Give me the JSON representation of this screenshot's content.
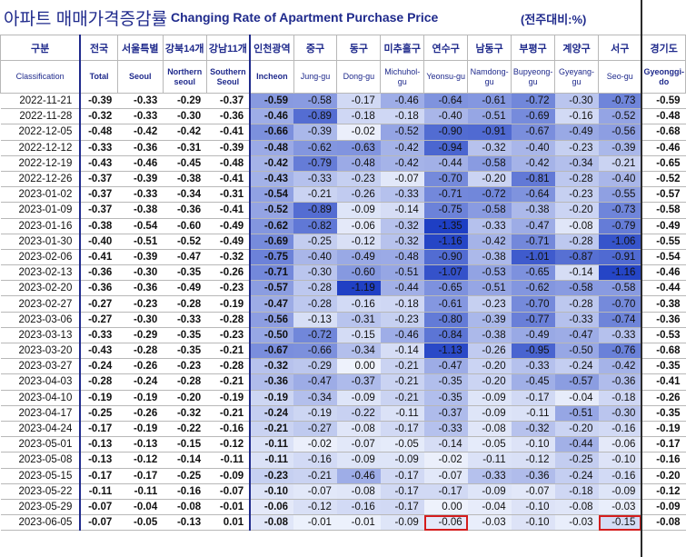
{
  "title": {
    "korean": "아파트 매매가격증감률",
    "english": "Changing Rate of Apartment Purchase Price",
    "unit": "(전주대비:%)"
  },
  "colors": {
    "header_text": "#1f2a8c",
    "highlight_border": "#d41d1d",
    "heat_light": "#eef2fc",
    "heat_dark": "#1e3fc4"
  },
  "columns": [
    {
      "ko": "구분",
      "en": "Classification"
    },
    {
      "ko": "전국",
      "en": "Total"
    },
    {
      "ko": "서울특별",
      "en": "Seoul"
    },
    {
      "ko": "강북14개",
      "en": "Northern seoul"
    },
    {
      "ko": "강남11개",
      "en": "Southern Seoul"
    },
    {
      "ko": "인천광역",
      "en": "Incheon"
    },
    {
      "ko": "중구",
      "en": "Jung-gu"
    },
    {
      "ko": "동구",
      "en": "Dong-gu"
    },
    {
      "ko": "미추홀구",
      "en": "Michuhol-gu"
    },
    {
      "ko": "연수구",
      "en": "Yeonsu-gu"
    },
    {
      "ko": "남동구",
      "en": "Namdong-gu"
    },
    {
      "ko": "부평구",
      "en": "Bupyeong-gu"
    },
    {
      "ko": "계양구",
      "en": "Gyeyang-gu"
    },
    {
      "ko": "서구",
      "en": "Seo-gu"
    },
    {
      "ko": "경기도",
      "en": "Gyeonggi-do"
    }
  ],
  "rows": [
    {
      "date": "2022-11-21",
      "values": [
        "-0.39",
        "-0.33",
        "-0.29",
        "-0.37",
        "-0.59",
        "-0.58",
        "-0.17",
        "-0.46",
        "-0.64",
        "-0.61",
        "-0.72",
        "-0.30",
        "-0.73",
        "-0.59"
      ]
    },
    {
      "date": "2022-11-28",
      "values": [
        "-0.32",
        "-0.33",
        "-0.30",
        "-0.36",
        "-0.46",
        "-0.89",
        "-0.18",
        "-0.18",
        "-0.40",
        "-0.51",
        "-0.69",
        "-0.16",
        "-0.52",
        "-0.48"
      ]
    },
    {
      "date": "2022-12-05",
      "values": [
        "-0.48",
        "-0.42",
        "-0.42",
        "-0.41",
        "-0.66",
        "-0.39",
        "-0.02",
        "-0.52",
        "-0.90",
        "-0.91",
        "-0.67",
        "-0.49",
        "-0.56",
        "-0.68"
      ]
    },
    {
      "date": "2022-12-12",
      "values": [
        "-0.33",
        "-0.36",
        "-0.31",
        "-0.39",
        "-0.48",
        "-0.62",
        "-0.63",
        "-0.42",
        "-0.94",
        "-0.32",
        "-0.40",
        "-0.23",
        "-0.39",
        "-0.46"
      ]
    },
    {
      "date": "2022-12-19",
      "values": [
        "-0.43",
        "-0.46",
        "-0.45",
        "-0.48",
        "-0.42",
        "-0.79",
        "-0.48",
        "-0.42",
        "-0.44",
        "-0.58",
        "-0.42",
        "-0.34",
        "-0.21",
        "-0.65"
      ]
    },
    {
      "date": "2022-12-26",
      "values": [
        "-0.37",
        "-0.39",
        "-0.38",
        "-0.41",
        "-0.43",
        "-0.33",
        "-0.23",
        "-0.07",
        "-0.70",
        "-0.20",
        "-0.81",
        "-0.28",
        "-0.40",
        "-0.52"
      ]
    },
    {
      "date": "2023-01-02",
      "values": [
        "-0.37",
        "-0.33",
        "-0.34",
        "-0.31",
        "-0.54",
        "-0.21",
        "-0.26",
        "-0.33",
        "-0.71",
        "-0.72",
        "-0.64",
        "-0.23",
        "-0.55",
        "-0.57"
      ]
    },
    {
      "date": "2023-01-09",
      "values": [
        "-0.37",
        "-0.38",
        "-0.36",
        "-0.41",
        "-0.52",
        "-0.89",
        "-0.09",
        "-0.14",
        "-0.75",
        "-0.58",
        "-0.38",
        "-0.20",
        "-0.73",
        "-0.58"
      ]
    },
    {
      "date": "2023-01-16",
      "values": [
        "-0.38",
        "-0.54",
        "-0.60",
        "-0.49",
        "-0.62",
        "-0.82",
        "-0.06",
        "-0.32",
        "-1.35",
        "-0.33",
        "-0.47",
        "-0.08",
        "-0.79",
        "-0.49"
      ]
    },
    {
      "date": "2023-01-30",
      "values": [
        "-0.40",
        "-0.51",
        "-0.52",
        "-0.49",
        "-0.69",
        "-0.25",
        "-0.12",
        "-0.32",
        "-1.16",
        "-0.42",
        "-0.71",
        "-0.28",
        "-1.06",
        "-0.55"
      ]
    },
    {
      "date": "2023-02-06",
      "values": [
        "-0.41",
        "-0.39",
        "-0.47",
        "-0.32",
        "-0.75",
        "-0.40",
        "-0.49",
        "-0.48",
        "-0.90",
        "-0.38",
        "-1.01",
        "-0.87",
        "-0.91",
        "-0.54"
      ]
    },
    {
      "date": "2023-02-13",
      "values": [
        "-0.36",
        "-0.30",
        "-0.35",
        "-0.26",
        "-0.71",
        "-0.30",
        "-0.60",
        "-0.51",
        "-1.07",
        "-0.53",
        "-0.65",
        "-0.14",
        "-1.16",
        "-0.46"
      ]
    },
    {
      "date": "2023-02-20",
      "values": [
        "-0.36",
        "-0.36",
        "-0.49",
        "-0.23",
        "-0.57",
        "-0.28",
        "-1.19",
        "-0.44",
        "-0.65",
        "-0.51",
        "-0.62",
        "-0.58",
        "-0.58",
        "-0.44"
      ]
    },
    {
      "date": "2023-02-27",
      "values": [
        "-0.27",
        "-0.23",
        "-0.28",
        "-0.19",
        "-0.47",
        "-0.28",
        "-0.16",
        "-0.18",
        "-0.61",
        "-0.23",
        "-0.70",
        "-0.28",
        "-0.70",
        "-0.38"
      ]
    },
    {
      "date": "2023-03-06",
      "values": [
        "-0.27",
        "-0.30",
        "-0.33",
        "-0.28",
        "-0.56",
        "-0.13",
        "-0.31",
        "-0.23",
        "-0.80",
        "-0.39",
        "-0.77",
        "-0.33",
        "-0.74",
        "-0.36"
      ]
    },
    {
      "date": "2023-03-13",
      "values": [
        "-0.33",
        "-0.29",
        "-0.35",
        "-0.23",
        "-0.50",
        "-0.72",
        "-0.15",
        "-0.46",
        "-0.84",
        "-0.38",
        "-0.49",
        "-0.47",
        "-0.33",
        "-0.53"
      ]
    },
    {
      "date": "2023-03-20",
      "values": [
        "-0.43",
        "-0.28",
        "-0.35",
        "-0.21",
        "-0.67",
        "-0.66",
        "-0.34",
        "-0.14",
        "-1.13",
        "-0.26",
        "-0.95",
        "-0.50",
        "-0.76",
        "-0.68"
      ]
    },
    {
      "date": "2023-03-27",
      "values": [
        "-0.24",
        "-0.26",
        "-0.23",
        "-0.28",
        "-0.32",
        "-0.29",
        "0.00",
        "-0.21",
        "-0.47",
        "-0.20",
        "-0.33",
        "-0.24",
        "-0.42",
        "-0.35"
      ]
    },
    {
      "date": "2023-04-03",
      "values": [
        "-0.28",
        "-0.24",
        "-0.28",
        "-0.21",
        "-0.36",
        "-0.47",
        "-0.37",
        "-0.21",
        "-0.35",
        "-0.20",
        "-0.45",
        "-0.57",
        "-0.36",
        "-0.41"
      ]
    },
    {
      "date": "2023-04-10",
      "values": [
        "-0.19",
        "-0.19",
        "-0.20",
        "-0.19",
        "-0.19",
        "-0.34",
        "-0.09",
        "-0.21",
        "-0.35",
        "-0.09",
        "-0.17",
        "-0.04",
        "-0.18",
        "-0.26"
      ]
    },
    {
      "date": "2023-04-17",
      "values": [
        "-0.25",
        "-0.26",
        "-0.32",
        "-0.21",
        "-0.24",
        "-0.19",
        "-0.22",
        "-0.11",
        "-0.37",
        "-0.09",
        "-0.11",
        "-0.51",
        "-0.30",
        "-0.35"
      ]
    },
    {
      "date": "2023-04-24",
      "values": [
        "-0.17",
        "-0.19",
        "-0.22",
        "-0.16",
        "-0.21",
        "-0.27",
        "-0.08",
        "-0.17",
        "-0.33",
        "-0.08",
        "-0.32",
        "-0.20",
        "-0.16",
        "-0.19"
      ]
    },
    {
      "date": "2023-05-01",
      "values": [
        "-0.13",
        "-0.13",
        "-0.15",
        "-0.12",
        "-0.11",
        "-0.02",
        "-0.07",
        "-0.05",
        "-0.14",
        "-0.05",
        "-0.10",
        "-0.44",
        "-0.06",
        "-0.17"
      ]
    },
    {
      "date": "2023-05-08",
      "values": [
        "-0.13",
        "-0.12",
        "-0.14",
        "-0.11",
        "-0.11",
        "-0.16",
        "-0.09",
        "-0.09",
        "-0.02",
        "-0.11",
        "-0.12",
        "-0.25",
        "-0.10",
        "-0.16"
      ]
    },
    {
      "date": "2023-05-15",
      "values": [
        "-0.17",
        "-0.17",
        "-0.25",
        "-0.09",
        "-0.23",
        "-0.21",
        "-0.46",
        "-0.17",
        "-0.07",
        "-0.33",
        "-0.36",
        "-0.24",
        "-0.16",
        "-0.20"
      ]
    },
    {
      "date": "2023-05-22",
      "values": [
        "-0.11",
        "-0.11",
        "-0.16",
        "-0.07",
        "-0.10",
        "-0.07",
        "-0.08",
        "-0.17",
        "-0.17",
        "-0.09",
        "-0.07",
        "-0.18",
        "-0.09",
        "-0.12"
      ]
    },
    {
      "date": "2023-05-29",
      "values": [
        "-0.07",
        "-0.04",
        "-0.08",
        "-0.01",
        "-0.06",
        "-0.12",
        "-0.16",
        "-0.17",
        "0.00",
        "-0.04",
        "-0.10",
        "-0.08",
        "-0.03",
        "-0.09"
      ]
    },
    {
      "date": "2023-06-05",
      "values": [
        "-0.07",
        "-0.05",
        "-0.13",
        "0.01",
        "-0.08",
        "-0.01",
        "-0.01",
        "-0.09",
        "-0.06",
        "-0.03",
        "-0.10",
        "-0.03",
        "-0.15",
        "-0.08"
      ]
    }
  ],
  "highlighted_cells": [
    {
      "row": "2023-06-05",
      "column": "연수구"
    },
    {
      "row": "2023-06-05",
      "column": "서구"
    }
  ]
}
